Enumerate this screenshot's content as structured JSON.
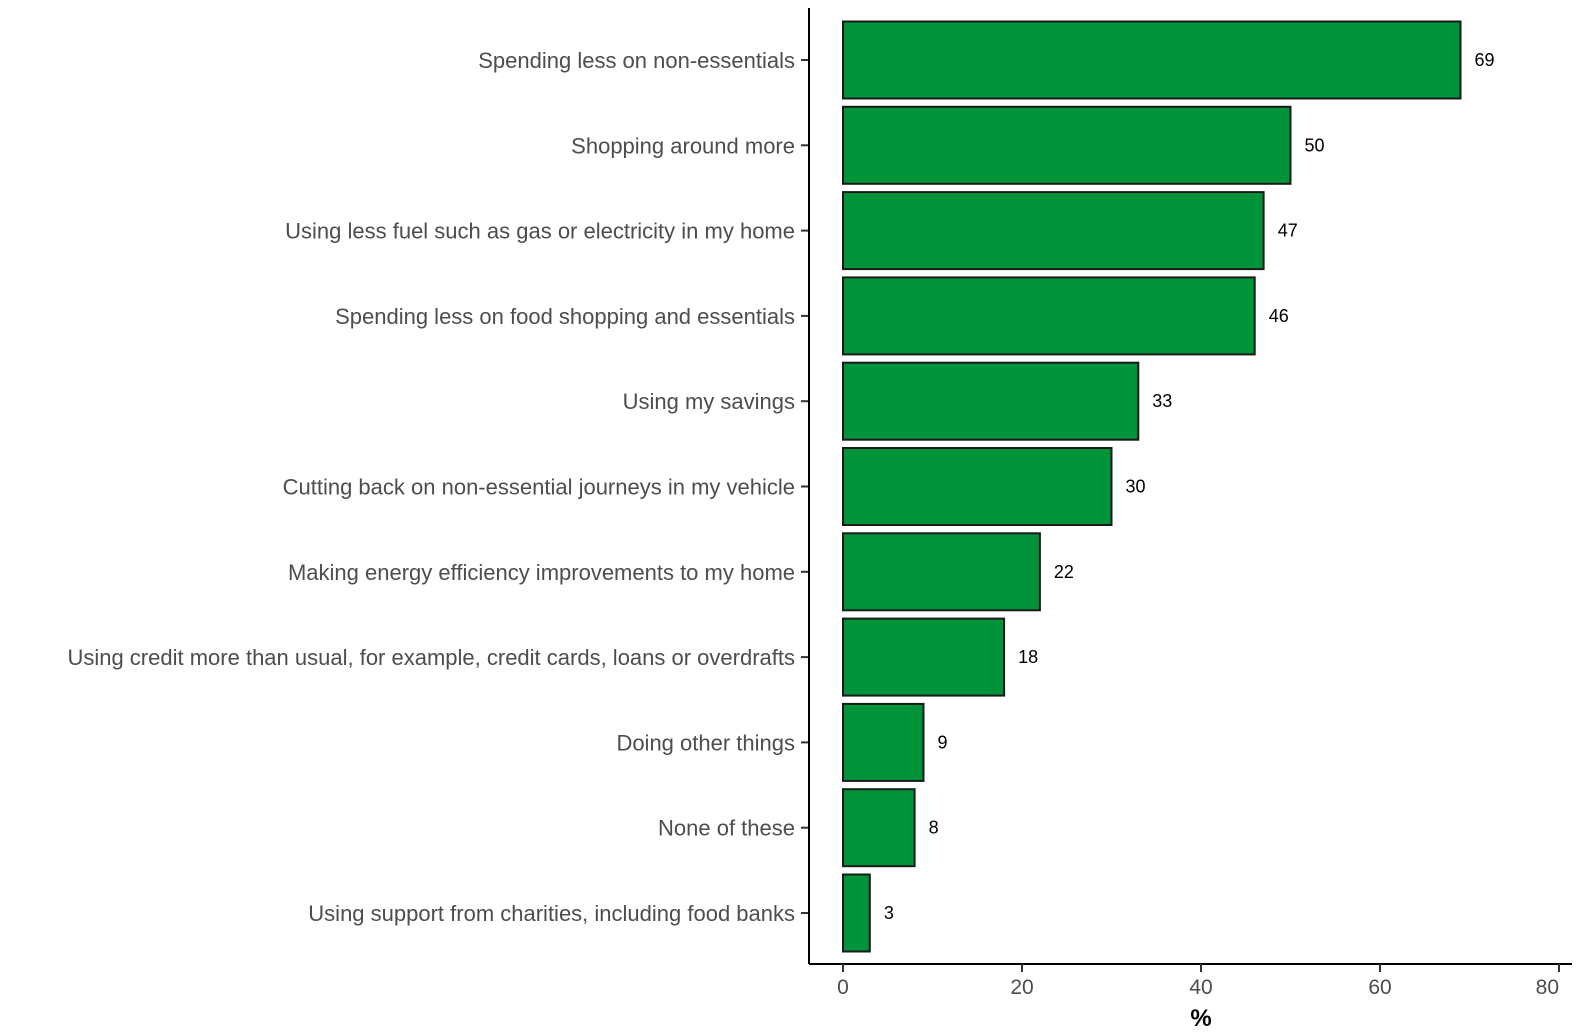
{
  "chart_data": {
    "type": "bar",
    "orientation": "horizontal",
    "categories": [
      "Spending less on non-essentials",
      "Shopping around more",
      "Using less fuel such as gas or electricity in my home",
      "Spending less on food shopping and essentials",
      "Using my savings",
      "Cutting back on non-essential journeys in my vehicle",
      "Making energy efficiency improvements to my home",
      "Using credit more than usual, for example, credit cards, loans or overdrafts",
      "Doing other things",
      "None of these",
      "Using support from charities, including food banks"
    ],
    "values": [
      69,
      50,
      47,
      46,
      33,
      30,
      22,
      18,
      9,
      8,
      3
    ],
    "xlabel": "%",
    "ylabel": "",
    "xlim": [
      0,
      80
    ],
    "xticks": [
      0,
      20,
      40,
      60,
      80
    ],
    "grid": false,
    "legend": "none",
    "bar_color": "#00943a",
    "bar_edge_color": "#1a1a1a"
  }
}
